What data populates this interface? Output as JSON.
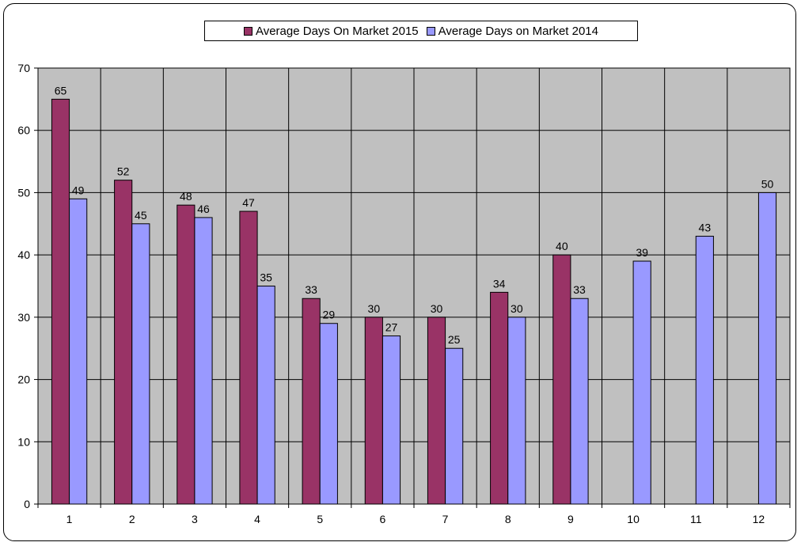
{
  "chart_data": {
    "type": "bar",
    "title": "",
    "xlabel": "",
    "ylabel": "",
    "categories": [
      "1",
      "2",
      "3",
      "4",
      "5",
      "6",
      "7",
      "8",
      "9",
      "10",
      "11",
      "12"
    ],
    "series": [
      {
        "name": "Average Days On Market 2015",
        "color": "#993366",
        "values": [
          65,
          52,
          48,
          47,
          33,
          30,
          30,
          34,
          40,
          null,
          null,
          null
        ]
      },
      {
        "name": "Average Days on Market 2014",
        "color": "#9999ff",
        "values": [
          49,
          45,
          46,
          35,
          29,
          27,
          25,
          30,
          33,
          39,
          43,
          50
        ]
      }
    ],
    "ylim": [
      0,
      70
    ],
    "yticks": [
      0,
      10,
      20,
      30,
      40,
      50,
      60,
      70
    ],
    "grid": true,
    "plot_background": "#c0c0c0",
    "legend_position": "top-center",
    "data_labels": true
  }
}
